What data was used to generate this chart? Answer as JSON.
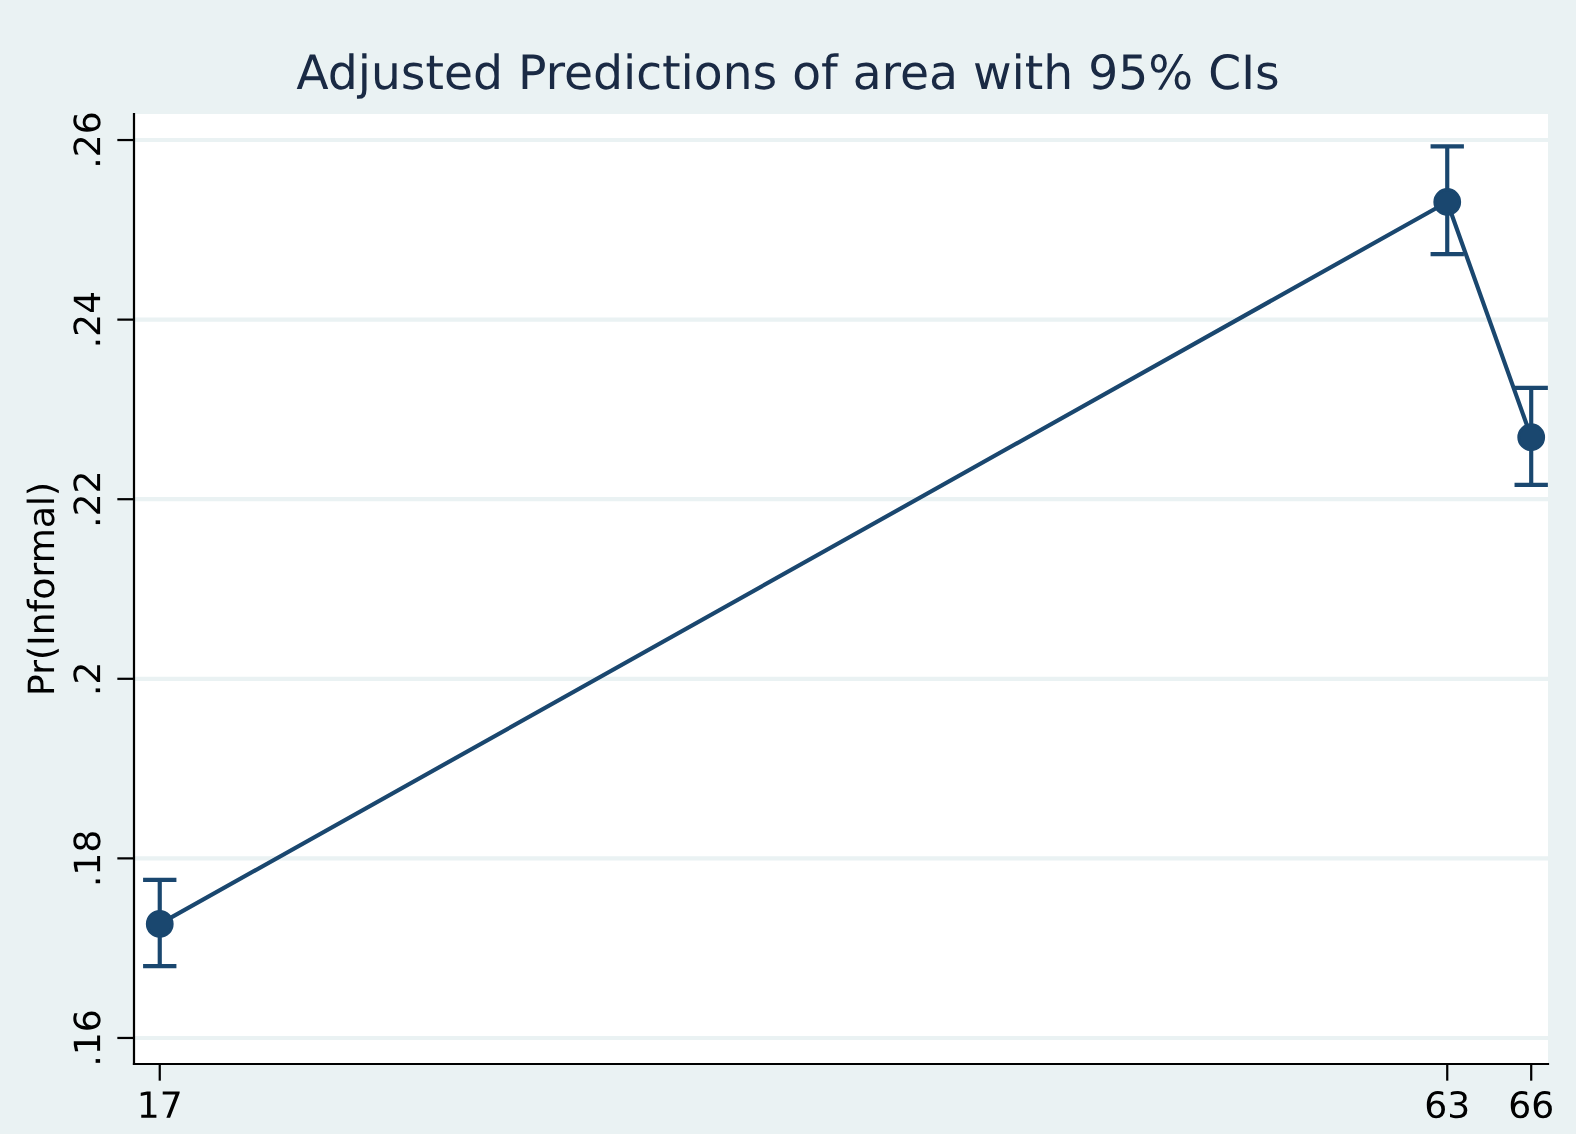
{
  "chart_data": {
    "type": "line",
    "title": "Adjusted Predictions of area with 95% CIs",
    "ylabel": "Pr(Informal)",
    "x": [
      17,
      63,
      66
    ],
    "series": [
      {
        "color": "#1a476f",
        "values": [
          0.1727,
          0.2531,
          0.2269
        ],
        "errors": [
          [
            0.168,
            0.1776
          ],
          [
            0.2473,
            0.2593
          ],
          [
            0.2216,
            0.2324
          ]
        ]
      }
    ],
    "xlim": [
      16.08,
      66.6
    ],
    "xticks": [
      17,
      63,
      66
    ],
    "ylim": [
      0.1571,
      0.2629
    ],
    "yticks": [
      {
        "value": 0.16,
        "label": ".16"
      },
      {
        "value": 0.18,
        "label": ".18"
      },
      {
        "value": 0.2,
        "label": ".2"
      },
      {
        "value": 0.22,
        "label": ".22"
      },
      {
        "value": 0.24,
        "label": ".24"
      },
      {
        "value": 0.26,
        "label": ".26"
      }
    ],
    "grid": "y",
    "marker": "circle",
    "line_style": "solid"
  }
}
